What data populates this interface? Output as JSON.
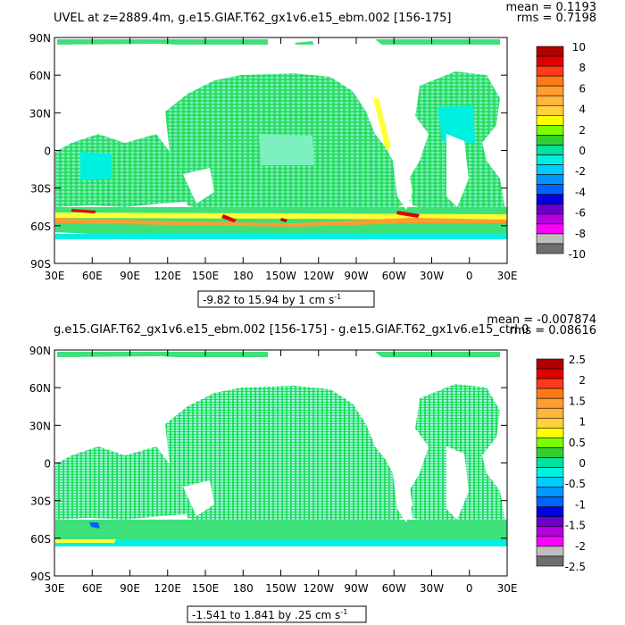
{
  "chart_data": [
    {
      "type": "heatmap",
      "title": "UVEL at z=2889.4m, g.e15.GIAF.T62_gx1v6.e15_ebm.002 [156-175]",
      "stat_mean": "mean = 0.1193",
      "stat_rms": "rms = 0.7198",
      "x_ticks": [
        "30E",
        "60E",
        "90E",
        "120E",
        "150E",
        "180",
        "150W",
        "120W",
        "90W",
        "60W",
        "30W",
        "0",
        "30E"
      ],
      "y_ticks": [
        "90N",
        "60N",
        "30N",
        "0",
        "30S",
        "60S",
        "90S"
      ],
      "xlim": [
        30,
        390
      ],
      "ylim": [
        -90,
        90
      ],
      "range_label": "-9.82 to 15.94 by 1 cm s",
      "range_unit_exp": "-1",
      "colorbar_labels": [
        "10",
        "8",
        "6",
        "4",
        "2",
        "0",
        "-2",
        "-4",
        "-6",
        "-8",
        "-10"
      ],
      "colorbar_colors": [
        "#b00000",
        "#e00000",
        "#ff3a1e",
        "#ff7a14",
        "#ff9d2e",
        "#ffb43c",
        "#ffd23c",
        "#ffff00",
        "#7cfc00",
        "#32cd32",
        "#00e0a0",
        "#00f0e0",
        "#00cdff",
        "#0096ff",
        "#0064ff",
        "#0000e0",
        "#6a00c8",
        "#b400e0",
        "#ff00ff",
        "#bebebe",
        "#6e6e6e"
      ]
    },
    {
      "type": "heatmap",
      "title": "g.e15.GIAF.T62_gx1v6.e15_ebm.002 [156-175] - g.e15.GIAF.T62_gx1v6.e15_ctrl.0",
      "stat_mean": "mean = -0.007874",
      "stat_rms": "rms = 0.08616",
      "x_ticks": [
        "30E",
        "60E",
        "90E",
        "120E",
        "150E",
        "180",
        "150W",
        "120W",
        "90W",
        "60W",
        "30W",
        "0",
        "30E"
      ],
      "y_ticks": [
        "90N",
        "60N",
        "30N",
        "0",
        "30S",
        "60S",
        "90S"
      ],
      "xlim": [
        30,
        390
      ],
      "ylim": [
        -90,
        90
      ],
      "range_label": "-1.541 to 1.841 by .25 cm s",
      "range_unit_exp": "-1",
      "colorbar_labels": [
        "2.5",
        "2",
        "1.5",
        "1",
        "0.5",
        "0",
        "-0.5",
        "-1",
        "-1.5",
        "-2",
        "-2.5"
      ],
      "colorbar_colors": [
        "#b00000",
        "#e00000",
        "#ff3a1e",
        "#ff7a14",
        "#ff9d2e",
        "#ffb43c",
        "#ffd23c",
        "#ffff00",
        "#7cfc00",
        "#32cd32",
        "#00e0a0",
        "#00f0e0",
        "#00cdff",
        "#0096ff",
        "#0064ff",
        "#0000e0",
        "#6a00c8",
        "#b400e0",
        "#ff00ff",
        "#bebebe",
        "#6e6e6e"
      ]
    }
  ]
}
